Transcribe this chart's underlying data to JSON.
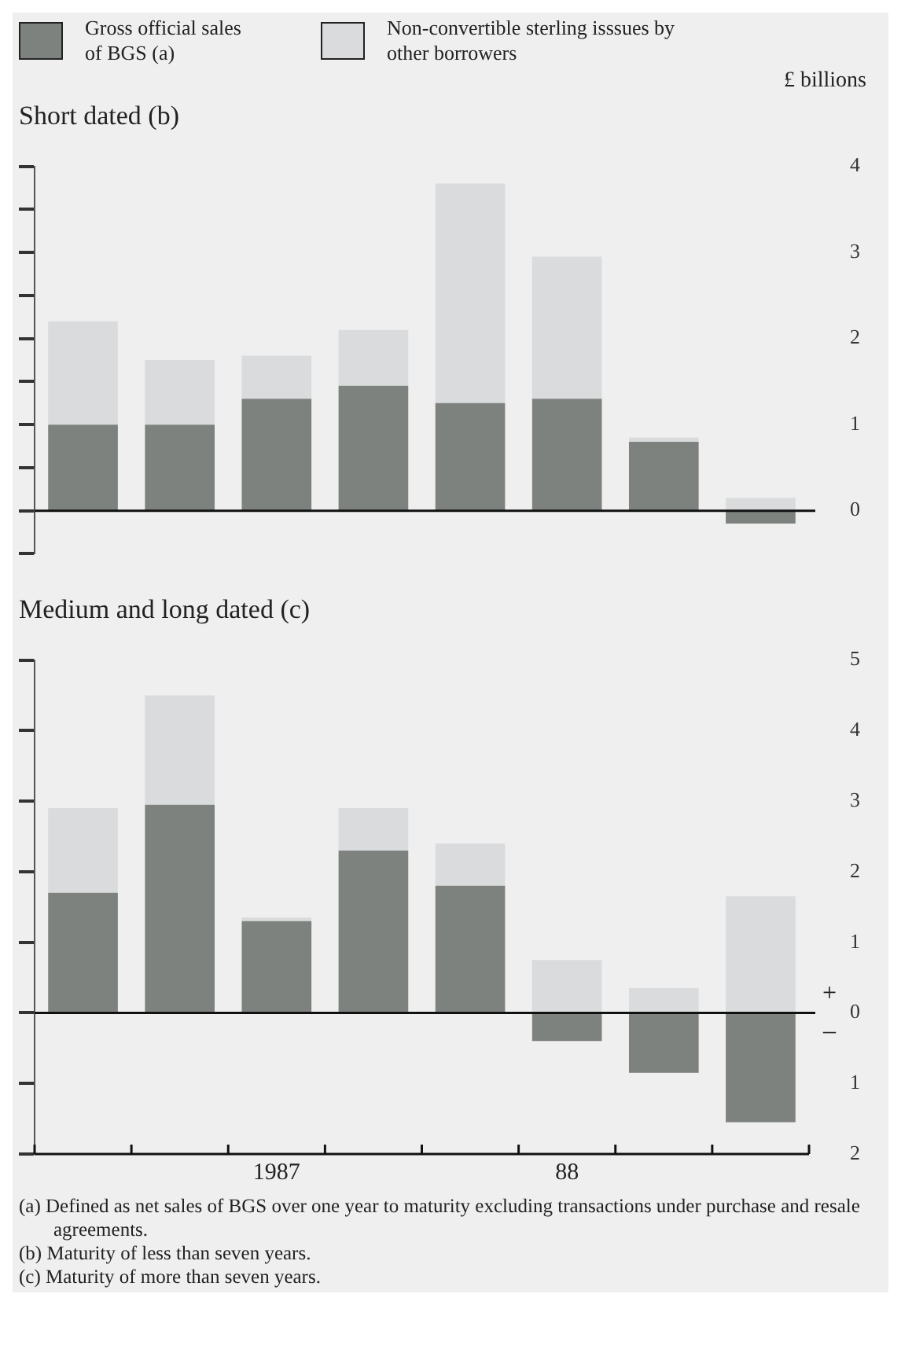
{
  "chart_data": [
    {
      "type": "bar",
      "title": "Short dated (b)",
      "ylabel": "£ billions",
      "stacked": true,
      "legend": "top",
      "tick_labels": "y",
      "categories": [
        null,
        null,
        null,
        null,
        null,
        null,
        null,
        null
      ],
      "series": [
        {
          "name": "Gross official sales of BGS (a)",
          "color": "#7d827e",
          "values": [
            1.0,
            1.0,
            1.3,
            1.45,
            1.25,
            1.3,
            0.8,
            -0.15
          ]
        },
        {
          "name": "Non-convertible sterling isssues by other borrowers",
          "color": "#d9dbdd",
          "values": [
            1.2,
            0.75,
            0.5,
            0.65,
            2.55,
            1.65,
            0.05,
            0.15
          ]
        }
      ],
      "ylim": [
        -0.5,
        4
      ],
      "yticks": [
        {
          "value": -0.5,
          "label": null
        },
        0,
        {
          "value": 0.5,
          "label": null
        },
        1,
        {
          "value": 1.5,
          "label": null
        },
        2,
        {
          "value": 2.5,
          "label": null
        },
        3,
        {
          "value": 3.5,
          "label": null
        },
        4
      ]
    },
    {
      "type": "bar",
      "title": "Medium and long dated (c)",
      "stacked": true,
      "categories": [
        null,
        null,
        "1987",
        null,
        null,
        "88",
        null,
        null
      ],
      "series": [
        {
          "color": "#7d827e",
          "values": [
            1.7,
            2.95,
            1.3,
            2.3,
            1.8,
            -0.4,
            -0.85,
            -1.55
          ]
        },
        {
          "color": "#d9dbdd",
          "values": [
            1.2,
            1.55,
            0.05,
            0.6,
            0.6,
            0.75,
            0.35,
            1.65
          ]
        }
      ],
      "ylim": [
        -2,
        5
      ],
      "yticks": [
        {
          "value": -2,
          "label": "2"
        },
        {
          "value": -1,
          "label": "1"
        },
        0,
        1,
        2,
        3,
        4,
        5
      ],
      "annotations": [
        "+",
        "–",
        "(a) Defined as net sales of BGS over one year to maturity excluding transactions under purchase and resale agreements.",
        "(b) Maturity of less than seven years.",
        "(c) Maturity of more than seven years."
      ]
    }
  ]
}
